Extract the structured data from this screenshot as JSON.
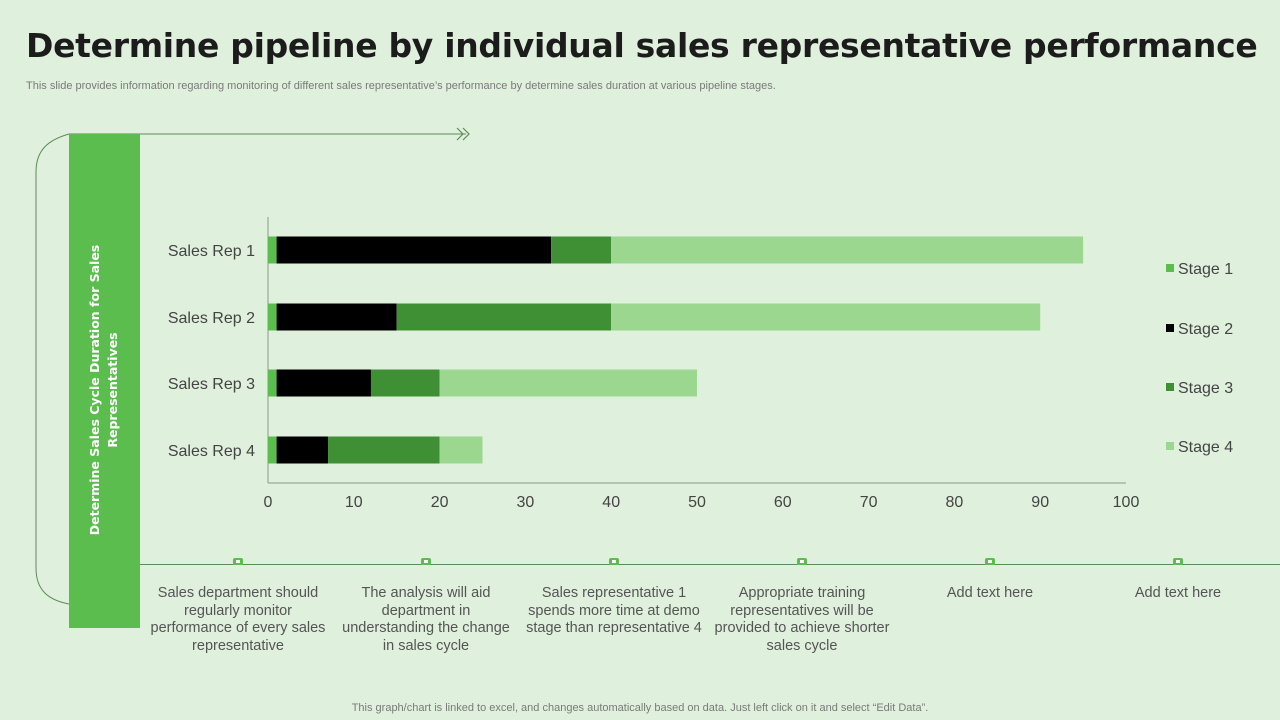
{
  "title": "Determine pipeline by individual sales representative performance",
  "subtitle": "This slide provides information regarding monitoring of different sales representative’s performance by determine sales duration at various pipeline stages.",
  "side_label": "Determine Sales Cycle Duration for Sales Representatives",
  "colors": {
    "background": "#dff0dc",
    "accent": "#5bbd4e",
    "stage1": "#5bbd4e",
    "stage2": "#000000",
    "stage3": "#3f8f35",
    "stage4": "#9bd78f"
  },
  "chart_data": {
    "type": "bar",
    "orientation": "horizontal",
    "stacked": true,
    "categories": [
      "Sales Rep 1",
      "Sales Rep 2",
      "Sales Rep 3",
      "Sales Rep 4"
    ],
    "series": [
      {
        "name": "Stage 1",
        "values": [
          1,
          1,
          1,
          1
        ]
      },
      {
        "name": "Stage 2",
        "values": [
          32,
          14,
          11,
          6
        ]
      },
      {
        "name": "Stage 3",
        "values": [
          7,
          25,
          8,
          13
        ]
      },
      {
        "name": "Stage 4",
        "values": [
          55,
          50,
          30,
          5
        ]
      }
    ],
    "xlim": [
      0,
      100
    ],
    "xticks": [
      0,
      10,
      20,
      30,
      40,
      50,
      60,
      70,
      80,
      90,
      100
    ],
    "legend_position": "right",
    "grid": false
  },
  "notes": [
    "Sales department should regularly monitor performance of every sales representative",
    "The analysis will aid department in understanding the change in sales cycle",
    "Sales representative 1 spends more time at demo stage than representative 4",
    "Appropriate training representatives will be provided to achieve shorter sales cycle",
    "Add text here",
    "Add text here"
  ],
  "footer": "This graph/chart is linked to excel,  and changes automatically based on data. Just left click on it and select “Edit Data”."
}
